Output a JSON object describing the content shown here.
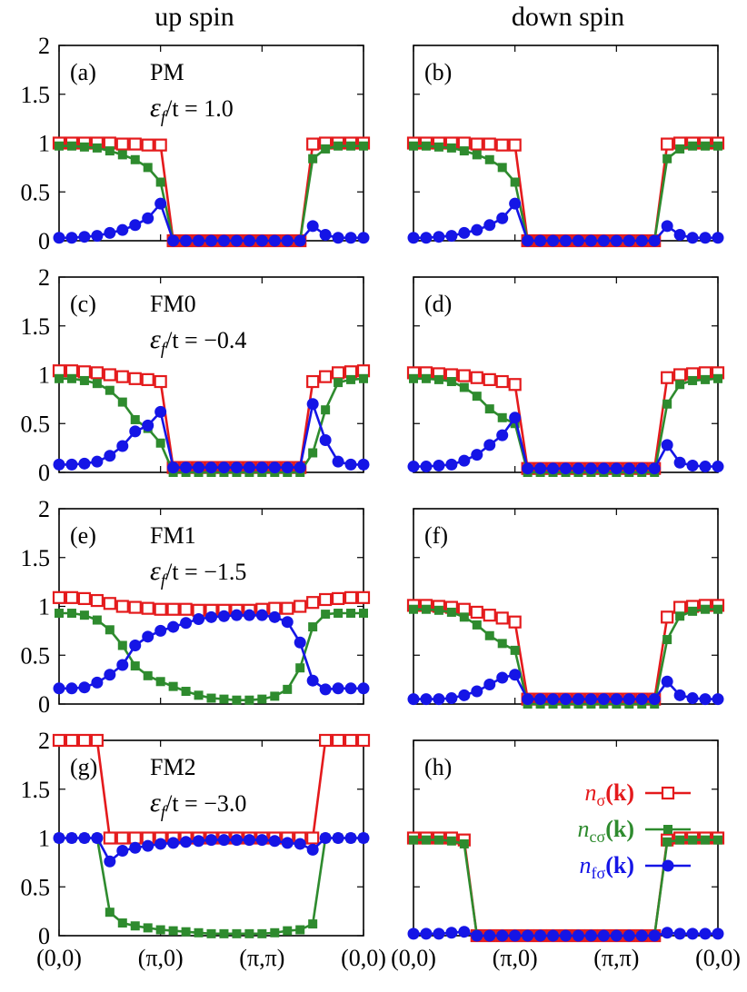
{
  "figure": {
    "column_titles": [
      "up spin",
      "down spin"
    ],
    "x_tick_labels": [
      "(0,0)",
      "(π,0)",
      "(π,π)",
      "(0,0)"
    ],
    "y_tick_labels": [
      "0",
      "0.5",
      "1",
      "1.5",
      "2"
    ],
    "legend": {
      "n": {
        "base": "n",
        "sub": "σ",
        "arg": "(k)"
      },
      "nc": {
        "base": "n",
        "sub": "cσ",
        "arg": "(k)"
      },
      "nf": {
        "base": "n",
        "sub": "fσ",
        "arg": "(k)"
      }
    },
    "colors": {
      "n": "#e41a1c",
      "nc": "#2e8b2e",
      "nf": "#1515e6"
    }
  },
  "chart_data": [
    {
      "type": "line",
      "label": "(a)",
      "phase": "PM",
      "epsilon_f_label": {
        "eps": "ε",
        "sub": "f",
        "rest": "/t = 1.0"
      },
      "spin": "up",
      "xlim": [
        0,
        24
      ],
      "ylim": [
        0,
        2
      ],
      "x": [
        0,
        1,
        2,
        3,
        4,
        5,
        6,
        7,
        8,
        9,
        10,
        11,
        12,
        13,
        14,
        15,
        16,
        17,
        18,
        19,
        20,
        21,
        22,
        23,
        24
      ],
      "series": [
        {
          "name": "n_sigma(k)",
          "values": [
            1,
            1,
            1,
            1,
            1,
            0.99,
            0.99,
            0.98,
            0.98,
            0,
            0,
            0,
            0,
            0,
            0,
            0,
            0,
            0,
            0,
            0,
            0.99,
            1,
            1,
            1,
            1
          ]
        },
        {
          "name": "n_c_sigma(k)",
          "values": [
            0.97,
            0.97,
            0.96,
            0.95,
            0.92,
            0.88,
            0.83,
            0.75,
            0.6,
            0,
            0,
            0,
            0,
            0,
            0,
            0,
            0,
            0,
            0,
            0,
            0.84,
            0.94,
            0.97,
            0.97,
            0.97
          ]
        },
        {
          "name": "n_f_sigma(k)",
          "values": [
            0.03,
            0.03,
            0.04,
            0.05,
            0.08,
            0.11,
            0.16,
            0.23,
            0.38,
            0,
            0,
            0,
            0,
            0,
            0,
            0,
            0,
            0,
            0,
            0,
            0.15,
            0.06,
            0.03,
            0.03,
            0.03
          ]
        }
      ]
    },
    {
      "type": "line",
      "label": "(b)",
      "phase": "",
      "epsilon_f_label": null,
      "spin": "down",
      "xlim": [
        0,
        24
      ],
      "ylim": [
        0,
        2
      ],
      "x": [
        0,
        1,
        2,
        3,
        4,
        5,
        6,
        7,
        8,
        9,
        10,
        11,
        12,
        13,
        14,
        15,
        16,
        17,
        18,
        19,
        20,
        21,
        22,
        23,
        24
      ],
      "series": [
        {
          "name": "n_sigma(k)",
          "values": [
            1,
            1,
            1,
            1,
            1,
            0.99,
            0.99,
            0.98,
            0.98,
            0,
            0,
            0,
            0,
            0,
            0,
            0,
            0,
            0,
            0,
            0,
            0.99,
            1,
            1,
            1,
            1
          ]
        },
        {
          "name": "n_c_sigma(k)",
          "values": [
            0.97,
            0.97,
            0.96,
            0.95,
            0.92,
            0.88,
            0.83,
            0.75,
            0.6,
            0,
            0,
            0,
            0,
            0,
            0,
            0,
            0,
            0,
            0,
            0,
            0.84,
            0.94,
            0.97,
            0.97,
            0.97
          ]
        },
        {
          "name": "n_f_sigma(k)",
          "values": [
            0.03,
            0.03,
            0.04,
            0.05,
            0.08,
            0.11,
            0.16,
            0.23,
            0.38,
            0,
            0,
            0,
            0,
            0,
            0,
            0,
            0,
            0,
            0,
            0,
            0.15,
            0.06,
            0.03,
            0.03,
            0.03
          ]
        }
      ]
    },
    {
      "type": "line",
      "label": "(c)",
      "phase": "FM0",
      "epsilon_f_label": {
        "eps": "ε",
        "sub": "f",
        "rest": "/t = −0.4"
      },
      "spin": "up",
      "xlim": [
        0,
        24
      ],
      "ylim": [
        0,
        2
      ],
      "x": [
        0,
        1,
        2,
        3,
        4,
        5,
        6,
        7,
        8,
        9,
        10,
        11,
        12,
        13,
        14,
        15,
        16,
        17,
        18,
        19,
        20,
        21,
        22,
        23,
        24
      ],
      "series": [
        {
          "name": "n_sigma(k)",
          "values": [
            1.04,
            1.04,
            1.03,
            1.02,
            1.0,
            0.98,
            0.96,
            0.95,
            0.93,
            0.05,
            0.05,
            0.05,
            0.05,
            0.05,
            0.05,
            0.05,
            0.05,
            0.05,
            0.05,
            0.05,
            0.93,
            0.98,
            1.02,
            1.03,
            1.04
          ]
        },
        {
          "name": "n_c_sigma(k)",
          "values": [
            0.96,
            0.96,
            0.94,
            0.91,
            0.84,
            0.72,
            0.54,
            0.45,
            0.3,
            0,
            0,
            0,
            0,
            0,
            0,
            0,
            0,
            0,
            0,
            0,
            0.2,
            0.64,
            0.92,
            0.95,
            0.96
          ]
        },
        {
          "name": "n_f_sigma(k)",
          "values": [
            0.08,
            0.08,
            0.09,
            0.11,
            0.17,
            0.27,
            0.42,
            0.48,
            0.62,
            0.05,
            0.05,
            0.05,
            0.05,
            0.05,
            0.05,
            0.05,
            0.05,
            0.05,
            0.05,
            0.05,
            0.7,
            0.33,
            0.11,
            0.08,
            0.08
          ]
        }
      ]
    },
    {
      "type": "line",
      "label": "(d)",
      "phase": "",
      "epsilon_f_label": null,
      "spin": "down",
      "xlim": [
        0,
        24
      ],
      "ylim": [
        0,
        2
      ],
      "x": [
        0,
        1,
        2,
        3,
        4,
        5,
        6,
        7,
        8,
        9,
        10,
        11,
        12,
        13,
        14,
        15,
        16,
        17,
        18,
        19,
        20,
        21,
        22,
        23,
        24
      ],
      "series": [
        {
          "name": "n_sigma(k)",
          "values": [
            1.02,
            1.02,
            1.01,
            1.0,
            0.99,
            0.97,
            0.95,
            0.93,
            0.9,
            0.04,
            0.04,
            0.04,
            0.04,
            0.04,
            0.04,
            0.04,
            0.04,
            0.04,
            0.04,
            0.04,
            0.97,
            1.0,
            1.01,
            1.02,
            1.02
          ]
        },
        {
          "name": "n_c_sigma(k)",
          "values": [
            0.96,
            0.96,
            0.95,
            0.93,
            0.87,
            0.78,
            0.65,
            0.56,
            0.5,
            0,
            0,
            0,
            0,
            0,
            0,
            0,
            0,
            0,
            0,
            0,
            0.7,
            0.9,
            0.94,
            0.95,
            0.96
          ]
        },
        {
          "name": "n_f_sigma(k)",
          "values": [
            0.06,
            0.06,
            0.07,
            0.08,
            0.12,
            0.18,
            0.28,
            0.38,
            0.56,
            0.04,
            0.04,
            0.04,
            0.04,
            0.04,
            0.04,
            0.04,
            0.04,
            0.04,
            0.04,
            0.04,
            0.28,
            0.1,
            0.07,
            0.06,
            0.06
          ]
        }
      ]
    },
    {
      "type": "line",
      "label": "(e)",
      "phase": "FM1",
      "epsilon_f_label": {
        "eps": "ε",
        "sub": "f",
        "rest": "/t = −1.5"
      },
      "spin": "up",
      "xlim": [
        0,
        24
      ],
      "ylim": [
        0,
        2
      ],
      "x": [
        0,
        1,
        2,
        3,
        4,
        5,
        6,
        7,
        8,
        9,
        10,
        11,
        12,
        13,
        14,
        15,
        16,
        17,
        18,
        19,
        20,
        21,
        22,
        23,
        24
      ],
      "series": [
        {
          "name": "n_sigma(k)",
          "values": [
            1.09,
            1.09,
            1.08,
            1.06,
            1.03,
            1.0,
            0.99,
            0.98,
            0.97,
            0.97,
            0.97,
            0.96,
            0.96,
            0.96,
            0.96,
            0.96,
            0.97,
            0.98,
            0.98,
            1.0,
            1.04,
            1.07,
            1.08,
            1.09,
            1.09
          ]
        },
        {
          "name": "n_c_sigma(k)",
          "values": [
            0.93,
            0.93,
            0.91,
            0.86,
            0.76,
            0.6,
            0.39,
            0.29,
            0.23,
            0.18,
            0.13,
            0.09,
            0.06,
            0.05,
            0.04,
            0.04,
            0.05,
            0.08,
            0.15,
            0.37,
            0.79,
            0.92,
            0.93,
            0.93,
            0.93
          ]
        },
        {
          "name": "n_f_sigma(k)",
          "values": [
            0.16,
            0.16,
            0.17,
            0.22,
            0.3,
            0.4,
            0.6,
            0.69,
            0.75,
            0.79,
            0.83,
            0.87,
            0.89,
            0.9,
            0.91,
            0.91,
            0.91,
            0.89,
            0.84,
            0.63,
            0.24,
            0.15,
            0.16,
            0.16,
            0.16
          ]
        }
      ]
    },
    {
      "type": "line",
      "label": "(f)",
      "phase": "",
      "epsilon_f_label": null,
      "spin": "down",
      "xlim": [
        0,
        24
      ],
      "ylim": [
        0,
        2
      ],
      "x": [
        0,
        1,
        2,
        3,
        4,
        5,
        6,
        7,
        8,
        9,
        10,
        11,
        12,
        13,
        14,
        15,
        16,
        17,
        18,
        19,
        20,
        21,
        22,
        23,
        24
      ],
      "series": [
        {
          "name": "n_sigma(k)",
          "values": [
            1.01,
            1.01,
            1.0,
            0.99,
            0.97,
            0.94,
            0.91,
            0.88,
            0.84,
            0.05,
            0.05,
            0.05,
            0.05,
            0.05,
            0.05,
            0.05,
            0.05,
            0.05,
            0.05,
            0.05,
            0.89,
            0.99,
            1.0,
            1.01,
            1.01
          ]
        },
        {
          "name": "n_c_sigma(k)",
          "values": [
            0.97,
            0.97,
            0.96,
            0.94,
            0.89,
            0.81,
            0.7,
            0.62,
            0.55,
            0,
            0,
            0,
            0,
            0,
            0,
            0,
            0,
            0,
            0,
            0,
            0.66,
            0.9,
            0.95,
            0.97,
            0.97
          ]
        },
        {
          "name": "n_f_sigma(k)",
          "values": [
            0.05,
            0.05,
            0.05,
            0.06,
            0.09,
            0.13,
            0.2,
            0.27,
            0.3,
            0.05,
            0.05,
            0.05,
            0.05,
            0.05,
            0.05,
            0.05,
            0.05,
            0.05,
            0.05,
            0.05,
            0.23,
            0.09,
            0.06,
            0.05,
            0.05
          ]
        }
      ]
    },
    {
      "type": "line",
      "label": "(g)",
      "phase": "FM2",
      "epsilon_f_label": {
        "eps": "ε",
        "sub": "f",
        "rest": "/t = −3.0"
      },
      "spin": "up",
      "xlim": [
        0,
        24
      ],
      "ylim": [
        0,
        2
      ],
      "x": [
        0,
        1,
        2,
        3,
        4,
        5,
        6,
        7,
        8,
        9,
        10,
        11,
        12,
        13,
        14,
        15,
        16,
        17,
        18,
        19,
        20,
        21,
        22,
        23,
        24
      ],
      "series": [
        {
          "name": "n_sigma(k)",
          "values": [
            2,
            2,
            2,
            2,
            1.0,
            1.0,
            1.0,
            1.0,
            1.0,
            1.0,
            1.0,
            1.0,
            1.0,
            1.0,
            1.0,
            1.0,
            1.0,
            1.0,
            1.0,
            1.0,
            1.0,
            2,
            2,
            2,
            2
          ]
        },
        {
          "name": "n_c_sigma(k)",
          "values": [
            1,
            1,
            1,
            1,
            0.24,
            0.13,
            0.1,
            0.08,
            0.06,
            0.05,
            0.04,
            0.03,
            0.02,
            0.02,
            0.02,
            0.02,
            0.02,
            0.03,
            0.05,
            0.06,
            0.12,
            1,
            1,
            1,
            1
          ]
        },
        {
          "name": "n_f_sigma(k)",
          "values": [
            1,
            1,
            1,
            1,
            0.76,
            0.87,
            0.9,
            0.92,
            0.94,
            0.95,
            0.96,
            0.97,
            0.98,
            0.98,
            0.98,
            0.98,
            0.98,
            0.97,
            0.95,
            0.94,
            0.88,
            1,
            1,
            1,
            1
          ]
        }
      ]
    },
    {
      "type": "line",
      "label": "(h)",
      "phase": "",
      "epsilon_f_label": null,
      "spin": "down",
      "xlim": [
        0,
        24
      ],
      "ylim": [
        0,
        2
      ],
      "x": [
        0,
        1,
        2,
        3,
        4,
        5,
        6,
        7,
        8,
        9,
        10,
        11,
        12,
        13,
        14,
        15,
        16,
        17,
        18,
        19,
        20,
        21,
        22,
        23,
        24
      ],
      "series": [
        {
          "name": "n_sigma(k)",
          "values": [
            1,
            1,
            1,
            1,
            0.98,
            0,
            0,
            0,
            0,
            0,
            0,
            0,
            0,
            0,
            0,
            0,
            0,
            0,
            0,
            0,
            0.98,
            1,
            1,
            1,
            1
          ]
        },
        {
          "name": "n_c_sigma(k)",
          "values": [
            0.98,
            0.98,
            0.98,
            0.97,
            0.94,
            0,
            0,
            0,
            0,
            0,
            0,
            0,
            0,
            0,
            0,
            0,
            0,
            0,
            0,
            0,
            0.96,
            0.98,
            0.98,
            0.98,
            0.98
          ]
        },
        {
          "name": "n_f_sigma(k)",
          "values": [
            0.02,
            0.02,
            0.02,
            0.03,
            0.04,
            0,
            0,
            0,
            0,
            0,
            0,
            0,
            0,
            0,
            0,
            0,
            0,
            0,
            0,
            0,
            0.03,
            0.02,
            0.02,
            0.02,
            0.02
          ]
        }
      ],
      "show_legend": true
    }
  ]
}
